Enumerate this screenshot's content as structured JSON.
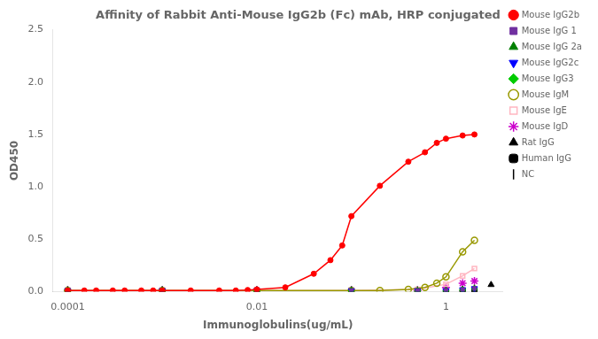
{
  "chart_data": {
    "type": "scatter",
    "title": "Affinity of Rabbit Anti-Mouse IgG2b (Fc) mAb, HRP conjugated",
    "x_label": "Immunoglobulins(ug/mL)",
    "y_label": "OD450",
    "log": "x",
    "grid": false,
    "legend": "right",
    "xlim": [
      7e-05,
      4.0
    ],
    "xticks": [
      0.0001,
      0.01,
      1
    ],
    "ylim": [
      0.0,
      2.5
    ],
    "yticks": [
      {
        "value": 0.0,
        "label": "0.0"
      },
      0.5,
      {
        "value": 1.0,
        "label": "1.0"
      },
      1.5,
      {
        "value": 2.0,
        "label": "2.0"
      },
      2.5
    ],
    "series": [
      {
        "name": "Mouse IgG2b",
        "color": "#ff0000",
        "marker": "circle",
        "line_style": "solid",
        "x": [
          0.0001,
          0.00015,
          0.0002,
          0.0003,
          0.0004,
          0.0006,
          0.0008,
          0.001,
          0.002,
          0.004,
          0.006,
          0.008,
          0.01,
          0.02,
          0.04,
          0.06,
          0.08,
          0.1,
          0.2,
          0.4,
          0.6,
          0.8,
          1.0,
          1.5,
          2.0
        ],
        "values": [
          0.01,
          0.01,
          0.01,
          0.01,
          0.01,
          0.01,
          0.01,
          0.01,
          0.01,
          0.01,
          0.01,
          0.015,
          0.02,
          0.04,
          0.17,
          0.3,
          0.44,
          0.72,
          1.01,
          1.24,
          1.33,
          1.42,
          1.46,
          1.49,
          1.5
        ]
      },
      {
        "name": "Mouse IgG 1",
        "color": "#7030a0",
        "marker": "square",
        "line_style": "none",
        "x": [
          0.0001,
          0.001,
          0.01,
          0.1,
          0.5,
          1.0,
          1.5,
          2.0
        ],
        "values": [
          0.01,
          0.01,
          0.01,
          0.01,
          0.01,
          0.01,
          0.02,
          0.03
        ]
      },
      {
        "name": "Mouse IgG 2a",
        "color": "#008000",
        "marker": "triangle_up",
        "line_style": "none",
        "x": [
          0.0001,
          0.001,
          0.01,
          0.1,
          0.5,
          1.0,
          1.5,
          2.0
        ],
        "values": [
          0.01,
          0.01,
          0.01,
          0.01,
          0.01,
          0.01,
          0.02,
          0.03
        ]
      },
      {
        "name": "Mouse IgG2c",
        "color": "#0000ff",
        "marker": "triangle_down",
        "line_style": "none",
        "x": [
          0.0001,
          0.001,
          0.01,
          0.1,
          0.5,
          1.0,
          1.5,
          2.0
        ],
        "values": [
          0.01,
          0.01,
          0.01,
          0.01,
          0.01,
          0.01,
          0.02,
          0.03
        ]
      },
      {
        "name": "Mouse IgG3",
        "color": "#00cc00",
        "marker": "diamond",
        "line_style": "none",
        "x": [
          0.0001,
          0.001,
          0.01,
          0.1,
          0.5,
          1.0,
          1.5,
          2.0
        ],
        "values": [
          0.01,
          0.01,
          0.01,
          0.01,
          0.01,
          0.01,
          0.02,
          0.03
        ]
      },
      {
        "name": "Mouse IgM",
        "color": "#999900",
        "marker": "open_circle",
        "line_style": "solid",
        "x": [
          0.0001,
          0.001,
          0.01,
          0.1,
          0.2,
          0.4,
          0.6,
          0.8,
          1.0,
          1.5,
          2.0
        ],
        "values": [
          0.01,
          0.01,
          0.01,
          0.01,
          0.01,
          0.02,
          0.04,
          0.08,
          0.14,
          0.38,
          0.49
        ]
      },
      {
        "name": "Mouse IgE",
        "color": "#ffb6c1",
        "marker": "open_square",
        "line_style": "solid",
        "x": [
          0.0001,
          0.001,
          0.01,
          0.1,
          0.5,
          1.0,
          1.5,
          2.0
        ],
        "values": [
          0.01,
          0.01,
          0.01,
          0.01,
          0.02,
          0.07,
          0.15,
          0.22
        ]
      },
      {
        "name": "Mouse IgD",
        "color": "#cc00cc",
        "marker": "star",
        "line_style": "none",
        "x": [
          0.0001,
          0.001,
          0.01,
          0.1,
          0.5,
          1.0,
          1.5,
          2.0
        ],
        "values": [
          0.01,
          0.01,
          0.01,
          0.01,
          0.01,
          0.04,
          0.08,
          0.1
        ]
      },
      {
        "name": "Rat IgG",
        "color": "#000000",
        "marker": "triangle_up",
        "line_style": "none",
        "x": [
          0.0001,
          0.001,
          0.01,
          0.1,
          0.5,
          1.0,
          1.5,
          2.0,
          3.0
        ],
        "values": [
          0.01,
          0.01,
          0.01,
          0.01,
          0.01,
          0.01,
          0.01,
          0.01,
          0.065
        ]
      },
      {
        "name": "Human IgG",
        "color": "#000000",
        "marker": "pentagon",
        "line_style": "none",
        "x": [
          0.0001,
          0.001,
          0.01,
          0.1,
          0.5,
          1.0,
          1.5,
          2.0
        ],
        "values": [
          0.01,
          0.01,
          0.01,
          0.01,
          0.01,
          0.01,
          0.01,
          0.01
        ]
      },
      {
        "name": "NC",
        "color": "#000000",
        "marker": "vline",
        "line_style": "none",
        "x": [
          0.0001,
          0.001,
          0.01,
          0.1,
          0.5,
          1.0,
          1.5,
          2.0
        ],
        "values": [
          0.01,
          0.01,
          0.01,
          0.01,
          0.01,
          0.01,
          0.01,
          0.01
        ]
      }
    ]
  }
}
